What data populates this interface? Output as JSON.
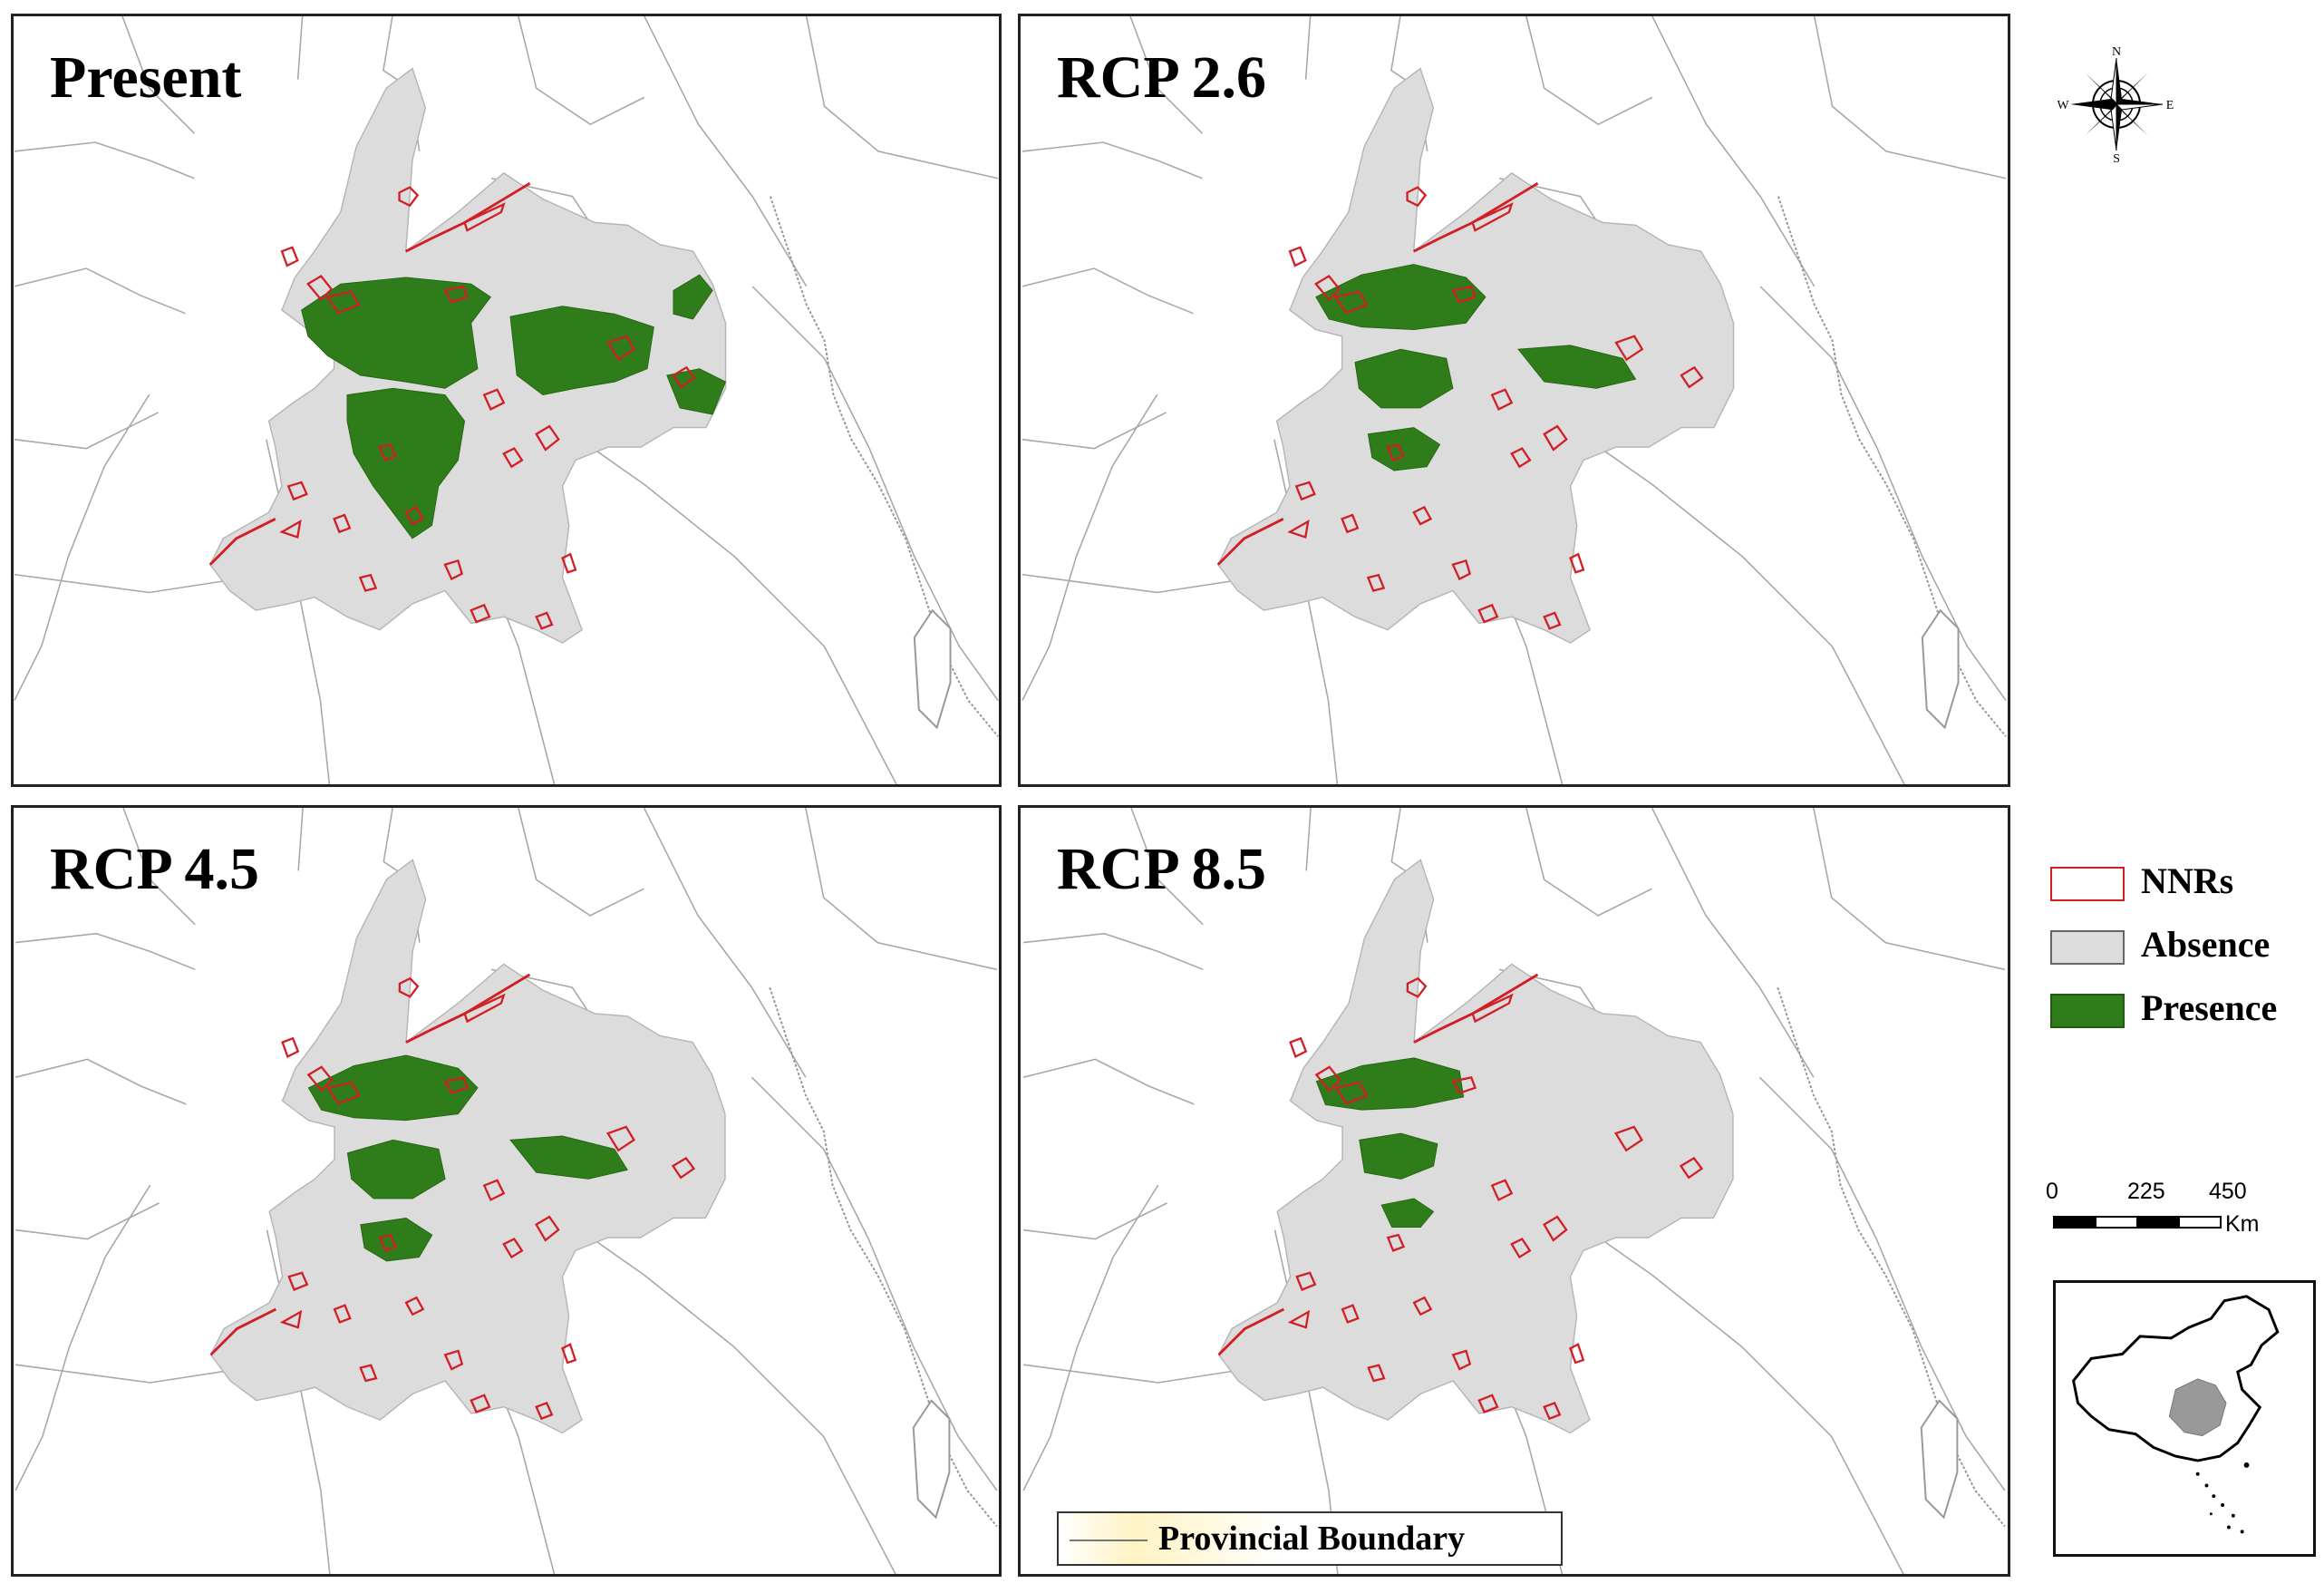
{
  "panels": [
    {
      "id": "p1",
      "title": "Present",
      "presence": "high"
    },
    {
      "id": "p2",
      "title": "RCP 2.6",
      "presence": "medium"
    },
    {
      "id": "p3",
      "title": "RCP 4.5",
      "presence": "medium"
    },
    {
      "id": "p4",
      "title": "RCP 8.5",
      "presence": "low"
    }
  ],
  "legend": {
    "items": [
      {
        "label": "NNRs",
        "color": "#d21f26",
        "type": "outline"
      },
      {
        "label": "Absence",
        "color": "#dcdcdc",
        "type": "fill"
      },
      {
        "label": "Presence",
        "color": "#2e7d1a",
        "type": "fill"
      }
    ]
  },
  "scale_bar": {
    "ticks": [
      "0",
      "225",
      "450"
    ],
    "unit": "Km"
  },
  "compass": {
    "n": "N",
    "s": "S",
    "e": "E",
    "w": "W"
  },
  "boundary_legend": {
    "label": "Provincial Boundary"
  },
  "colors": {
    "absence": "#dcdcdc",
    "presence": "#2e7d1a",
    "nnr": "#d21f26",
    "boundary": "#888888"
  }
}
